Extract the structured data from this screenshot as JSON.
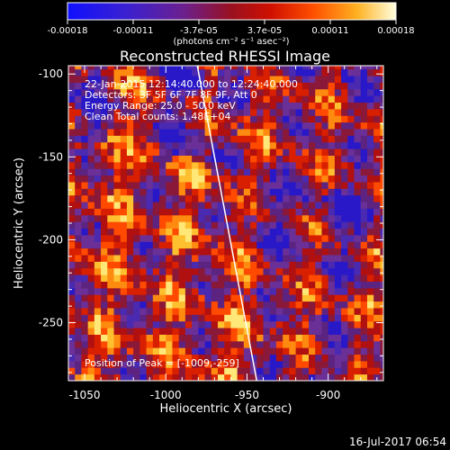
{
  "chart_data": {
    "type": "heatmap",
    "title": "Reconstructed RHESSI Image",
    "xlabel": "Heliocentric X (arcsec)",
    "ylabel": "Heliocentric Y (arcsec)",
    "xlim": [
      -1060,
      -866
    ],
    "ylim": [
      -285,
      -95
    ],
    "xticks": [
      -1050,
      -1000,
      -950,
      -900
    ],
    "yticks": [
      -250,
      -200,
      -150,
      -100
    ],
    "info_lines": [
      "22-Jan-2015 12:14:40.000 to 12:24:40.000",
      "Detectors: 3F 5F 6F 7F 8F 9F, Att 0",
      "Energy Range: 25.0 - 50.0 keV",
      "Clean    Total counts: 1.48E+04"
    ],
    "peak_text": "Position of Peak = [-1009,-259]",
    "limb_line": [
      [
        -981,
        -93
      ],
      [
        -944,
        -285
      ]
    ],
    "colorbar": {
      "ticks": [
        "-0.00018",
        "-0.00011",
        "-3.7e-05",
        "3.7e-05",
        "0.00011",
        "0.00018"
      ],
      "unit_label": "(photons cm⁻² s⁻¹ asec⁻²)",
      "range": [
        -0.00018,
        0.00018
      ]
    },
    "colors": {
      "low": "#1010e0",
      "mid_low": "#6030a0",
      "mid": "#b01010",
      "mid_high": "#ff5000",
      "high": "#ffff80",
      "top": "#ffffff"
    }
  },
  "footer": {
    "timestamp": "16-Jul-2017 06:54"
  }
}
